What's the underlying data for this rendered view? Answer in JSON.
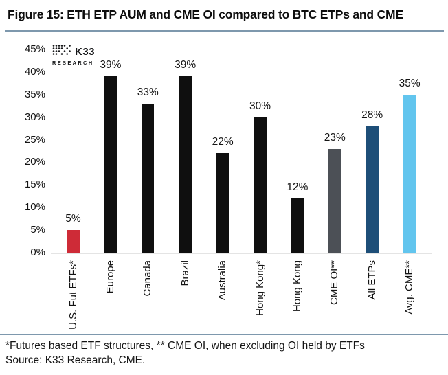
{
  "title": "Figure 15: ETH ETP AUM and CME OI compared to BTC ETPs and CME",
  "logo": {
    "name": "K33",
    "sub": "RESEARCH"
  },
  "chart_data": {
    "type": "bar",
    "title": "Figure 15: ETH ETP AUM and CME OI compared to BTC ETPs and CME",
    "categories": [
      "U.S. Fut ETFs*",
      "Europe",
      "Canada",
      "Brazil",
      "Australia",
      "Hong Kong*",
      "Hong Kong",
      "CME OI**",
      "All ETPs",
      "Avg. CME**"
    ],
    "values": [
      5,
      39,
      33,
      39,
      22,
      30,
      12,
      23,
      28,
      35
    ],
    "value_labels": [
      "5%",
      "39%",
      "33%",
      "39%",
      "22%",
      "30%",
      "12%",
      "23%",
      "28%",
      "35%"
    ],
    "bar_colors": [
      "#ce2b37",
      "#0f0f0f",
      "#0f0f0f",
      "#0f0f0f",
      "#0f0f0f",
      "#0f0f0f",
      "#0f0f0f",
      "#4c5056",
      "#1d4e78",
      "#62c5ee"
    ],
    "xlabel": "",
    "ylabel": "",
    "ylim": [
      0,
      45
    ],
    "yticks": [
      "45%",
      "40%",
      "35%",
      "30%",
      "25%",
      "20%",
      "15%",
      "10%",
      "5%",
      "0%"
    ],
    "x_axis_rotation": -90,
    "grid": false,
    "legend": false,
    "accent_colors": {
      "red": "#ce2b37",
      "black": "#0f0f0f",
      "gray": "#4c5056",
      "dark_blue": "#1d4e78",
      "light_blue": "#62c5ee",
      "divider": "#7e98ad",
      "baseline": "#e4e4e4"
    }
  },
  "footnote": {
    "line1": "*Futures based ETF structures, ** CME OI, when excluding OI held by ETFs",
    "line2": "Source: K33 Research, CME."
  }
}
